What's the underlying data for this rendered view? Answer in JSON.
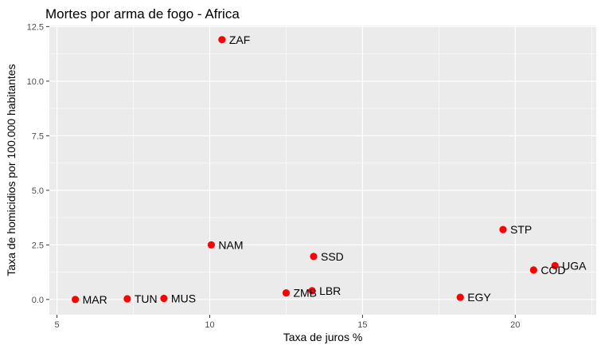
{
  "chart_data": {
    "type": "scatter",
    "title": "Mortes por arma de fogo - Africa",
    "xlabel": "Taxa de juros %",
    "ylabel": "Taxa de homicidios por 100.000 habitantes",
    "xlim": [
      4.75,
      22.65
    ],
    "ylim": [
      -0.7,
      12.55
    ],
    "x_ticks": [
      5,
      10,
      15,
      20
    ],
    "x_tick_labels": [
      "5",
      "10",
      "15",
      "20"
    ],
    "y_ticks": [
      0,
      2.5,
      5,
      7.5,
      10,
      12.5
    ],
    "y_tick_labels": [
      "0.0",
      "2.5",
      "5.0",
      "7.5",
      "10.0",
      "12.5"
    ],
    "grid": true,
    "colors": {
      "panel": "#ebebeb",
      "grid": "#ffffff",
      "point": "#ff0000"
    },
    "points": [
      {
        "label": "ZAF",
        "x": 10.4,
        "y": 11.9
      },
      {
        "label": "NAM",
        "x": 10.05,
        "y": 2.5
      },
      {
        "label": "SSD",
        "x": 13.4,
        "y": 1.97
      },
      {
        "label": "STP",
        "x": 19.6,
        "y": 3.2
      },
      {
        "label": "UGA",
        "x": 21.3,
        "y": 1.55
      },
      {
        "label": "COD",
        "x": 20.6,
        "y": 1.35
      },
      {
        "label": "LBR",
        "x": 13.35,
        "y": 0.4
      },
      {
        "label": "ZMB",
        "x": 12.5,
        "y": 0.3
      },
      {
        "label": "EGY",
        "x": 18.2,
        "y": 0.1
      },
      {
        "label": "MUS",
        "x": 8.5,
        "y": 0.05
      },
      {
        "label": "TUN",
        "x": 7.3,
        "y": 0.03
      },
      {
        "label": "MAR",
        "x": 5.6,
        "y": 0.0
      }
    ]
  }
}
